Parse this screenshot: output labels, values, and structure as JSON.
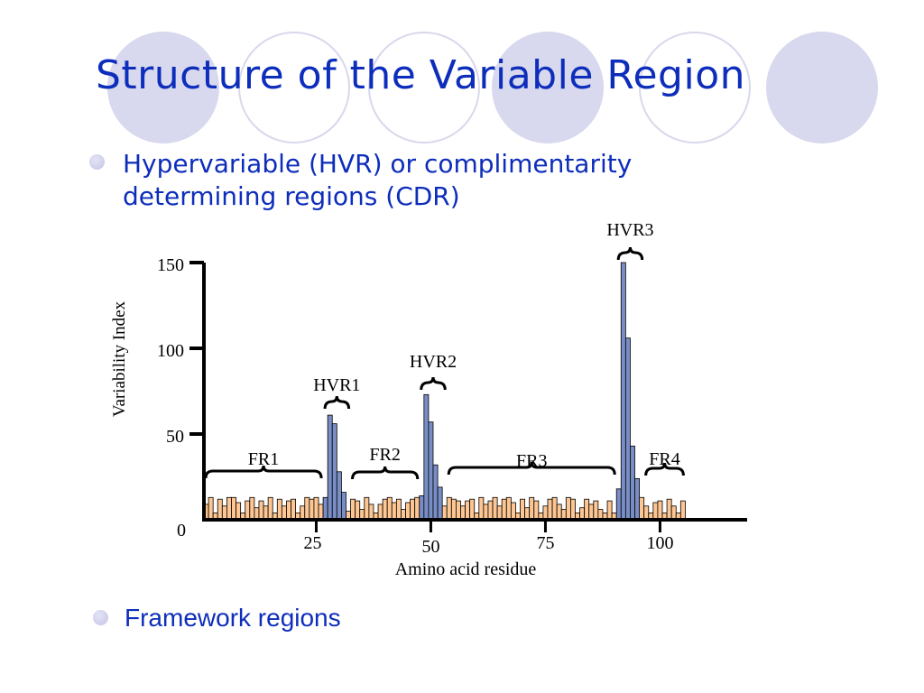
{
  "slide": {
    "title": "Structure of the Variable Region",
    "bullets": [
      "Hypervariable (HVR) or complimentarity determining regions (CDR)",
      "Framework regions"
    ],
    "colors": {
      "title": "#0d2dbb",
      "deco_circle": "#d8d8ee",
      "bullet": "#c3c3e6"
    }
  },
  "chart_data": {
    "type": "bar",
    "xlabel": "Amino acid residue",
    "ylabel": "Variability Index",
    "xlim": [
      0,
      110
    ],
    "ylim": [
      0,
      150
    ],
    "x_ticks": [
      25,
      50,
      75,
      100
    ],
    "y_ticks": [
      0,
      50,
      100,
      150
    ],
    "x": [
      1,
      2,
      3,
      4,
      5,
      6,
      7,
      8,
      9,
      10,
      11,
      12,
      13,
      14,
      15,
      16,
      17,
      18,
      19,
      20,
      21,
      22,
      23,
      24,
      25,
      26,
      27,
      28,
      29,
      30,
      31,
      32,
      33,
      34,
      35,
      36,
      37,
      38,
      39,
      40,
      41,
      42,
      43,
      44,
      45,
      46,
      47,
      48,
      49,
      50,
      51,
      52,
      53,
      54,
      55,
      56,
      57,
      58,
      59,
      60,
      61,
      62,
      63,
      64,
      65,
      66,
      67,
      68,
      69,
      70,
      71,
      72,
      73,
      74,
      75,
      76,
      77,
      78,
      79,
      80,
      81,
      82,
      83,
      84,
      85,
      86,
      87,
      88,
      89,
      90,
      91,
      92,
      93,
      94,
      95,
      96,
      97,
      98,
      99,
      100,
      101,
      102,
      103,
      104,
      105
    ],
    "values": [
      9,
      13,
      4,
      12,
      8,
      13,
      13,
      10,
      4,
      11,
      13,
      7,
      11,
      8,
      13,
      4,
      12,
      8,
      11,
      12,
      4,
      8,
      13,
      12,
      13,
      9,
      13,
      11,
      13,
      4,
      9,
      5,
      12,
      11,
      6,
      13,
      9,
      4,
      9,
      12,
      13,
      10,
      12,
      6,
      10,
      12,
      13,
      8,
      4,
      10,
      12,
      9,
      8,
      13,
      12,
      11,
      8,
      11,
      12,
      4,
      13,
      9,
      11,
      13,
      8,
      12,
      13,
      10,
      4,
      12,
      7,
      13,
      11,
      4,
      8,
      12,
      13,
      9,
      6,
      13,
      12,
      4,
      7,
      12,
      9,
      11,
      6,
      4,
      11,
      4,
      9,
      12,
      4,
      10,
      6,
      13,
      8,
      4,
      10,
      11,
      4,
      12,
      8,
      4,
      11
    ],
    "series": [
      {
        "name": "FR",
        "color": "#fdc692"
      },
      {
        "name": "HVR",
        "color": "#7a8ec6"
      }
    ],
    "hvr_bars": [
      {
        "x": 27,
        "value": 13
      },
      {
        "x": 28,
        "value": 61
      },
      {
        "x": 29,
        "value": 56
      },
      {
        "x": 30,
        "value": 28
      },
      {
        "x": 31,
        "value": 16
      },
      {
        "x": 48,
        "value": 14
      },
      {
        "x": 49,
        "value": 73
      },
      {
        "x": 50,
        "value": 57
      },
      {
        "x": 51,
        "value": 32
      },
      {
        "x": 52,
        "value": 19
      },
      {
        "x": 91,
        "value": 18
      },
      {
        "x": 92,
        "value": 150
      },
      {
        "x": 93,
        "value": 106
      },
      {
        "x": 94,
        "value": 43
      },
      {
        "x": 95,
        "value": 24
      }
    ],
    "region_labels": [
      {
        "label": "FR1",
        "from": 1,
        "to": 26
      },
      {
        "label": "HVR1",
        "from": 27,
        "to": 32
      },
      {
        "label": "FR2",
        "from": 33,
        "to": 47
      },
      {
        "label": "HVR2",
        "from": 48,
        "to": 53
      },
      {
        "label": "FR3",
        "from": 54,
        "to": 90
      },
      {
        "label": "HVR3",
        "from": 91,
        "to": 96
      },
      {
        "label": "FR4",
        "from": 97,
        "to": 105
      }
    ]
  }
}
